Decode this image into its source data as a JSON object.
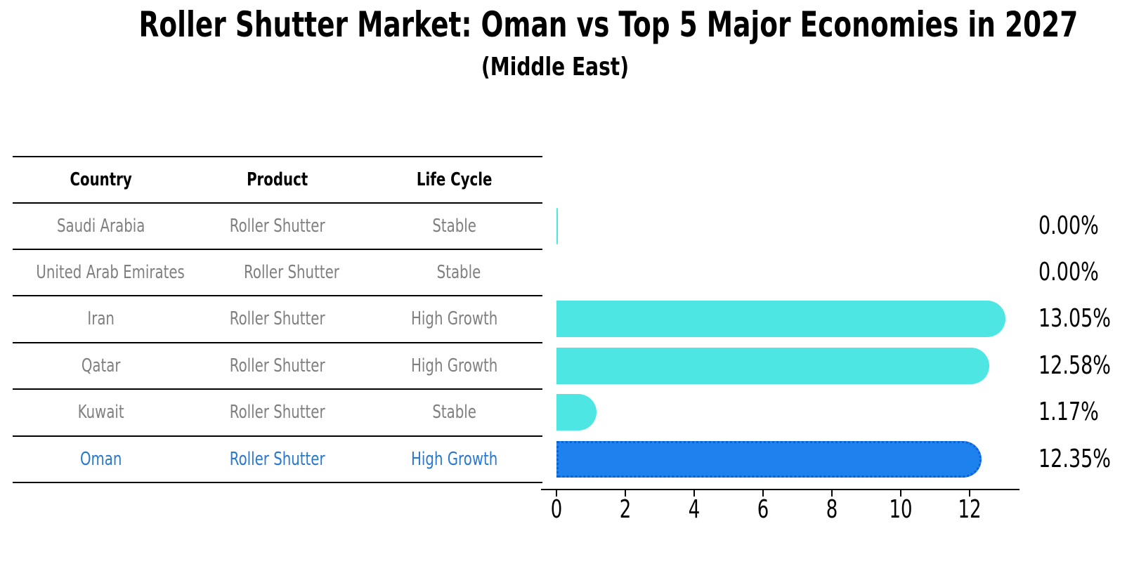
{
  "title": "Roller Shutter Market: Oman vs Top 5 Major Economies in 2027",
  "subtitle": "(Middle East)",
  "table": {
    "headers": [
      "Country",
      "Product",
      "Life Cycle"
    ],
    "rows": [
      {
        "country": "Saudi Arabia",
        "product": "Roller Shutter",
        "life_cycle": "Stable",
        "highlighted": false
      },
      {
        "country": "United Arab Emirates",
        "product": "Roller Shutter",
        "life_cycle": "Stable",
        "highlighted": false
      },
      {
        "country": "Iran",
        "product": "Roller Shutter",
        "life_cycle": "High Growth",
        "highlighted": false
      },
      {
        "country": "Qatar",
        "product": "Roller Shutter",
        "life_cycle": "High Growth",
        "highlighted": false
      },
      {
        "country": "Kuwait",
        "product": "Roller Shutter",
        "life_cycle": "Stable",
        "highlighted": false
      },
      {
        "country": "Oman",
        "product": "Roller Shutter",
        "life_cycle": "High Growth",
        "highlighted": true
      }
    ]
  },
  "chart_data": {
    "type": "bar",
    "orientation": "horizontal",
    "title": "Roller Shutter Market: Oman vs Top 5 Major Economies in 2027",
    "subtitle": "(Middle East)",
    "xlabel": "",
    "ylabel": "",
    "categories": [
      "Saudi Arabia",
      "United Arab Emirates",
      "Iran",
      "Qatar",
      "Kuwait",
      "Oman"
    ],
    "values": [
      0.0,
      0.0,
      13.05,
      12.58,
      1.17,
      12.35
    ],
    "value_labels": [
      "0.00%",
      "0.00%",
      "13.05%",
      "12.58%",
      "1.17%",
      "12.35%"
    ],
    "x_ticks": [
      0,
      2,
      4,
      6,
      8,
      10,
      12
    ],
    "xlim": [
      0,
      13.45
    ],
    "grid": false,
    "legend": null,
    "highlight_index": 5,
    "hairline_zero_bars": [
      0
    ],
    "colors": {
      "bar": "#4de6e2",
      "highlight_bar_fill": "#1e82ee",
      "highlight_bar_border": "#0f5fd7",
      "highlight_text": "#2878ce",
      "table_text": "#7f7f7f",
      "header_text": "#000000",
      "axis_and_labels": "#000000"
    }
  }
}
